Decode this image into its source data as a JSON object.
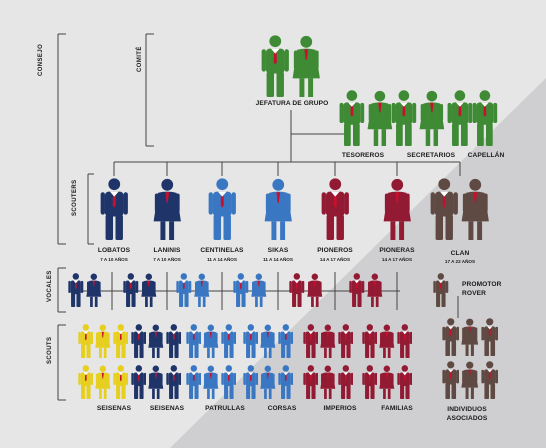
{
  "colors": {
    "green": "#3f8a34",
    "navy": "#1f3468",
    "blue": "#3a77c3",
    "maroon": "#921a33",
    "brown": "#5e4a42",
    "yellow": "#e6cf1e",
    "tie": "#c8102e",
    "background_light": "#e6e6e7",
    "background_dark": "#cfcfd1",
    "line": "#444444"
  },
  "side_labels": {
    "consejo": "CONSEJO",
    "comite": "COMITÉ",
    "scouters": "SCOUTERS",
    "vocales": "VOCALES",
    "scouts": "SCOUTS"
  },
  "committee": {
    "jefatura": "JEFATURA DE GRUPO",
    "tesoreros": "TESOREROS",
    "secretarios": "SECRETARIOS",
    "capellan": "CAPELLÁN"
  },
  "sections": [
    {
      "name": "LOBATOS",
      "ages": "7 A 10 AÑOS",
      "color": "navy",
      "scouts_label": "SEISENAS"
    },
    {
      "name": "LANINIS",
      "ages": "7 A 10 AÑOS",
      "color": "navy",
      "scouts_label": "SEISENAS"
    },
    {
      "name": "CENTINELAS",
      "ages": "11 A 14 AÑOS",
      "color": "blue",
      "scouts_label": "PATRULLAS"
    },
    {
      "name": "SIKAS",
      "ages": "11 A 14 AÑOS",
      "color": "blue",
      "scouts_label": "CORSAS"
    },
    {
      "name": "PIONEROS",
      "ages": "14 A 17 AÑOS",
      "color": "maroon",
      "scouts_label": "IMPERIOS"
    },
    {
      "name": "PIONERAS",
      "ages": "14 A 17 AÑOS",
      "color": "maroon",
      "scouts_label": "FAMILIAS"
    },
    {
      "name": "CLAN",
      "ages": "17 A 22 AÑOS",
      "color": "brown",
      "scouts_label": "INDIVIDUOS ASOCIADOS"
    }
  ],
  "promotor": "PROMOTOR ROVER"
}
